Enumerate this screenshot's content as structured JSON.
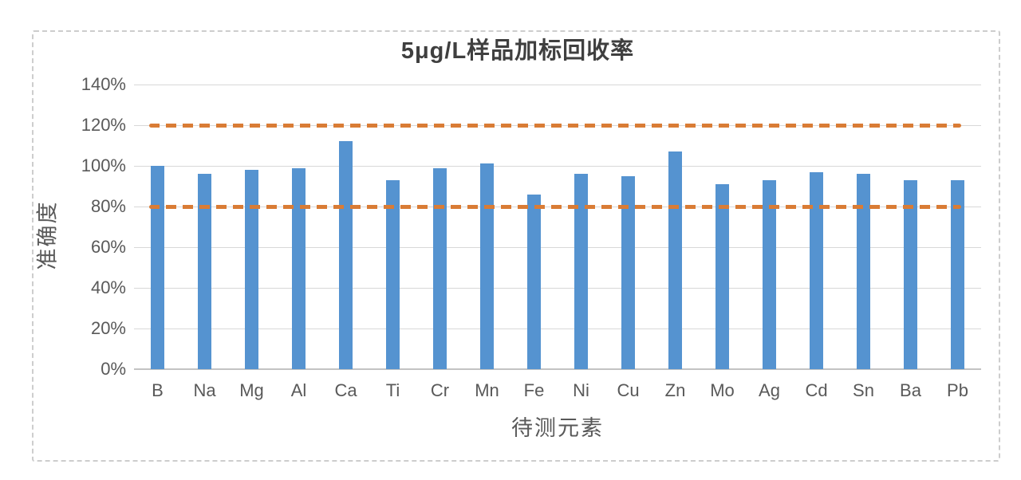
{
  "chart": {
    "title": "5μg/L样品加标回收率",
    "x_axis_title": "待测元素",
    "y_axis_title": "准确度"
  },
  "chart_data": {
    "type": "bar",
    "title": "5μg/L样品加标回收率",
    "xlabel": "待测元素",
    "ylabel": "准确度",
    "categories": [
      "B",
      "Na",
      "Mg",
      "Al",
      "Ca",
      "Ti",
      "Cr",
      "Mn",
      "Fe",
      "Ni",
      "Cu",
      "Zn",
      "Mo",
      "Ag",
      "Cd",
      "Sn",
      "Ba",
      "Pb"
    ],
    "values": [
      100,
      96,
      98,
      99,
      112,
      93,
      99,
      101,
      86,
      96,
      95,
      107,
      91,
      93,
      97,
      96,
      93,
      93
    ],
    "unit": "%",
    "ylim": [
      0,
      140
    ],
    "ytick_step": 20,
    "ytick_labels": [
      "0%",
      "20%",
      "40%",
      "60%",
      "80%",
      "100%",
      "120%",
      "140%"
    ],
    "grid": true,
    "legend": "none",
    "reference_lines": [
      {
        "name": "upper-limit-line",
        "value": 120,
        "style": "dashed"
      },
      {
        "name": "lower-limit-line",
        "value": 80,
        "style": "dashed"
      }
    ],
    "colors": {
      "bar": "#5593d0",
      "reference_line": "#d97c35",
      "gridline": "#d8d8d8",
      "axis_text": "#595959",
      "title_text": "#3f3f3f",
      "frame_border": "#cdcdcd"
    }
  }
}
